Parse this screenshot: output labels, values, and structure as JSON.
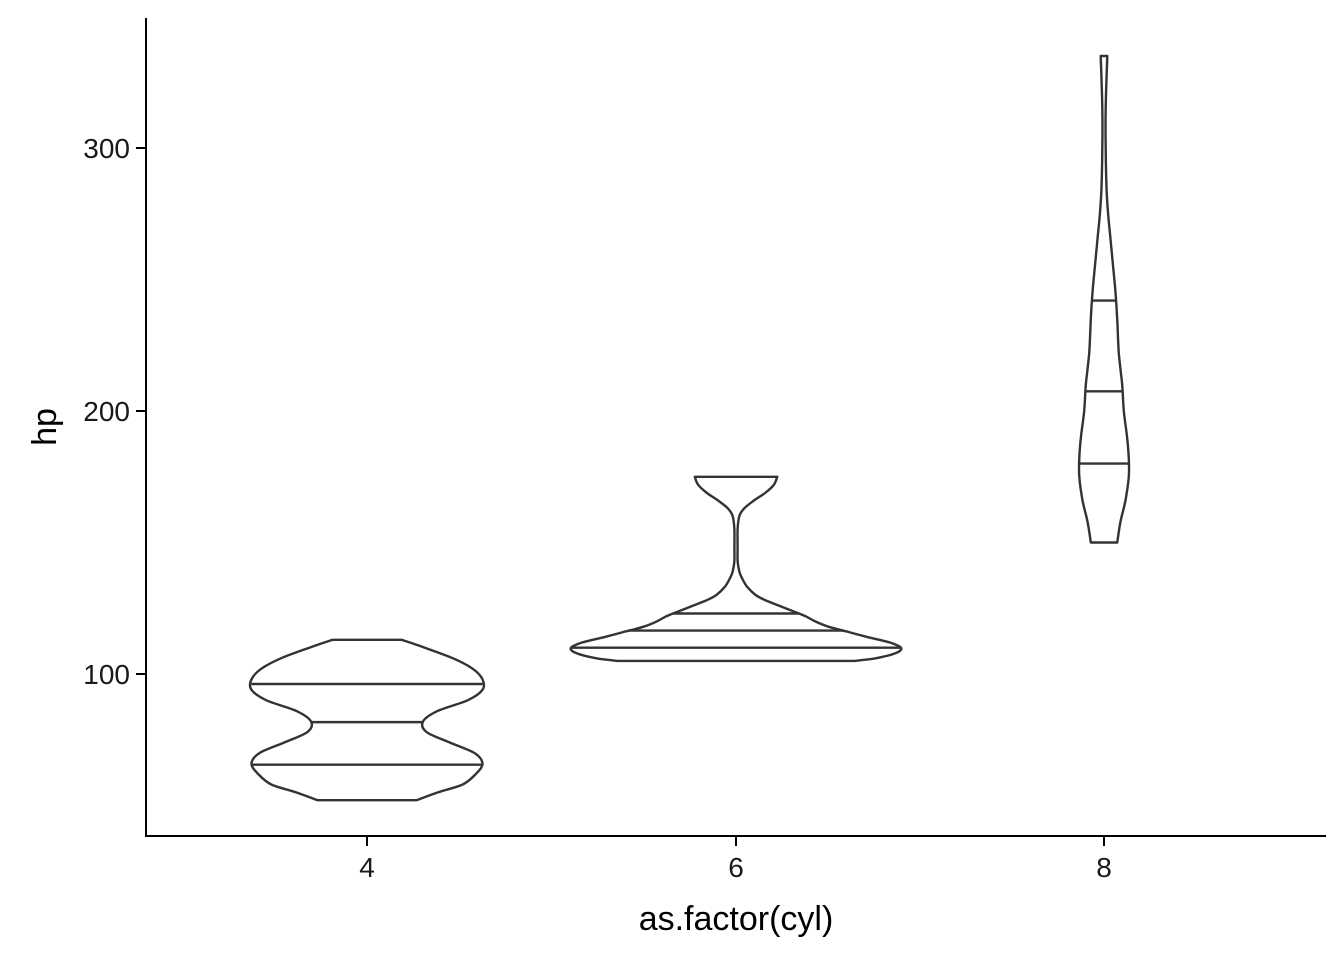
{
  "chart_data": {
    "type": "violin",
    "title": "",
    "xlabel": "as.factor(cyl)",
    "ylabel": "hp",
    "categories": [
      "4",
      "6",
      "8"
    ],
    "y_ticks": [
      100,
      200,
      300
    ],
    "ylim": [
      38,
      350
    ],
    "grid": false,
    "legend": "none",
    "series": [
      {
        "category": "4",
        "min": 52,
        "max": 113,
        "quantiles": [
          65.5,
          81.7,
          96.2
        ],
        "density": [
          {
            "y": 52,
            "w": 0.3
          },
          {
            "y": 55,
            "w": 0.43
          },
          {
            "y": 58,
            "w": 0.58
          },
          {
            "y": 62,
            "w": 0.66
          },
          {
            "y": 66,
            "w": 0.7
          },
          {
            "y": 70,
            "w": 0.65
          },
          {
            "y": 74,
            "w": 0.5
          },
          {
            "y": 78,
            "w": 0.36
          },
          {
            "y": 82,
            "w": 0.34
          },
          {
            "y": 86,
            "w": 0.43
          },
          {
            "y": 90,
            "w": 0.61
          },
          {
            "y": 94,
            "w": 0.7
          },
          {
            "y": 98,
            "w": 0.7
          },
          {
            "y": 102,
            "w": 0.64
          },
          {
            "y": 106,
            "w": 0.52
          },
          {
            "y": 110,
            "w": 0.35
          },
          {
            "y": 113,
            "w": 0.21
          }
        ]
      },
      {
        "category": "6",
        "min": 105,
        "max": 175,
        "quantiles": [
          110,
          116.5,
          123
        ],
        "density": [
          {
            "y": 105,
            "w": 0.72
          },
          {
            "y": 106,
            "w": 0.85
          },
          {
            "y": 108,
            "w": 0.97
          },
          {
            "y": 110,
            "w": 1.0
          },
          {
            "y": 112,
            "w": 0.93
          },
          {
            "y": 114,
            "w": 0.8
          },
          {
            "y": 116,
            "w": 0.68
          },
          {
            "y": 118,
            "w": 0.56
          },
          {
            "y": 120,
            "w": 0.48
          },
          {
            "y": 122,
            "w": 0.42
          },
          {
            "y": 124,
            "w": 0.34
          },
          {
            "y": 126,
            "w": 0.26
          },
          {
            "y": 128,
            "w": 0.18
          },
          {
            "y": 130,
            "w": 0.12
          },
          {
            "y": 133,
            "w": 0.07
          },
          {
            "y": 136,
            "w": 0.04
          },
          {
            "y": 139,
            "w": 0.02
          },
          {
            "y": 143,
            "w": 0.01
          },
          {
            "y": 148,
            "w": 0.01
          },
          {
            "y": 155,
            "w": 0.01
          },
          {
            "y": 160,
            "w": 0.02
          },
          {
            "y": 163,
            "w": 0.05
          },
          {
            "y": 166,
            "w": 0.11
          },
          {
            "y": 169,
            "w": 0.18
          },
          {
            "y": 172,
            "w": 0.23
          },
          {
            "y": 175,
            "w": 0.25
          }
        ]
      },
      {
        "category": "8",
        "min": 150,
        "max": 335,
        "quantiles": [
          180,
          207.5,
          242
        ],
        "density": [
          {
            "y": 150,
            "w": 0.08
          },
          {
            "y": 158,
            "w": 0.1
          },
          {
            "y": 166,
            "w": 0.13
          },
          {
            "y": 175,
            "w": 0.15
          },
          {
            "y": 182,
            "w": 0.15
          },
          {
            "y": 190,
            "w": 0.14
          },
          {
            "y": 200,
            "w": 0.12
          },
          {
            "y": 210,
            "w": 0.11
          },
          {
            "y": 222,
            "w": 0.09
          },
          {
            "y": 235,
            "w": 0.08
          },
          {
            "y": 245,
            "w": 0.07
          },
          {
            "y": 255,
            "w": 0.055
          },
          {
            "y": 265,
            "w": 0.04
          },
          {
            "y": 275,
            "w": 0.025
          },
          {
            "y": 285,
            "w": 0.015
          },
          {
            "y": 300,
            "w": 0.01
          },
          {
            "y": 315,
            "w": 0.01
          },
          {
            "y": 335,
            "w": 0.02
          }
        ]
      }
    ]
  }
}
